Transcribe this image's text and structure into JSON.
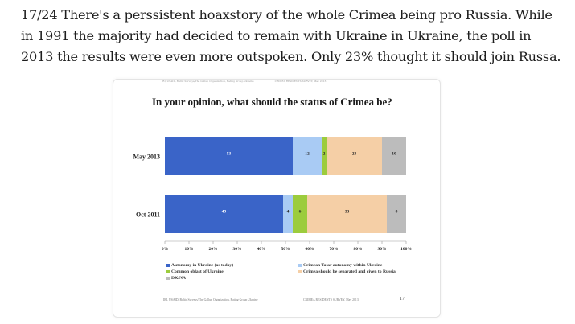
{
  "tweet": {
    "lines": [
      "17/24 There's a perssistent hoaxstory of the whole Crimea being pro Russia. While",
      "in 1991 the majority had decided to remain with Ukraine in Ukraine, the poll in",
      "2013 the results were even more outspoken. Only 23% thought it should join Russa."
    ]
  },
  "slide": {
    "header_left": "IRI, USAID, Baltic Surveys/The Gallup Organization, Rating Group Ukraine",
    "header_right": "CRIMEA RESIDENTS SURVEY, May 2013",
    "footnote_left": "IRI, USAID, Baltic Surveys/The Gallup Organization, Rating Group Ukraine",
    "footnote_right": "CRIMEA RESIDENTS SURVEY, May 2013",
    "page_number": "17"
  },
  "chart_data": {
    "type": "bar",
    "orientation": "horizontal",
    "stacked": true,
    "title": "In your opinion, what should the status of Crimea be?",
    "categories": [
      "May 2013",
      "Oct 2011"
    ],
    "x_ticks": [
      "0%",
      "10%",
      "20%",
      "30%",
      "40%",
      "50%",
      "60%",
      "70%",
      "80%",
      "90%",
      "100%"
    ],
    "xlim": [
      0,
      100
    ],
    "series": [
      {
        "name": "Autonomy in Ukraine (as today)",
        "color": "#3a64c8",
        "values": [
          53,
          49
        ],
        "labels": [
          "53",
          "49"
        ]
      },
      {
        "name": "Crimean Tatar autonomy within Ukraine",
        "color": "#a9cbf4",
        "values": [
          12,
          4
        ],
        "labels": [
          "12",
          "4"
        ]
      },
      {
        "name": "Common oblast of Ukraine",
        "color": "#9ccc3d",
        "values": [
          2,
          6
        ],
        "labels": [
          "2",
          "6"
        ]
      },
      {
        "name": "Crimea should be separated and given to Russia",
        "color": "#f5cfa6",
        "values": [
          23,
          33
        ],
        "labels": [
          "23",
          "33"
        ]
      },
      {
        "name": "DK/NA",
        "color": "#bcbcbc",
        "values": [
          10,
          8
        ],
        "labels": [
          "10",
          "8"
        ]
      }
    ],
    "legend_columns": [
      [
        "Autonomy in Ukraine (as today)",
        "Common oblast of Ukraine",
        "DK/NA"
      ],
      [
        "Crimean Tatar autonomy within Ukraine",
        "Crimea should be separated and given to Russia"
      ]
    ]
  }
}
